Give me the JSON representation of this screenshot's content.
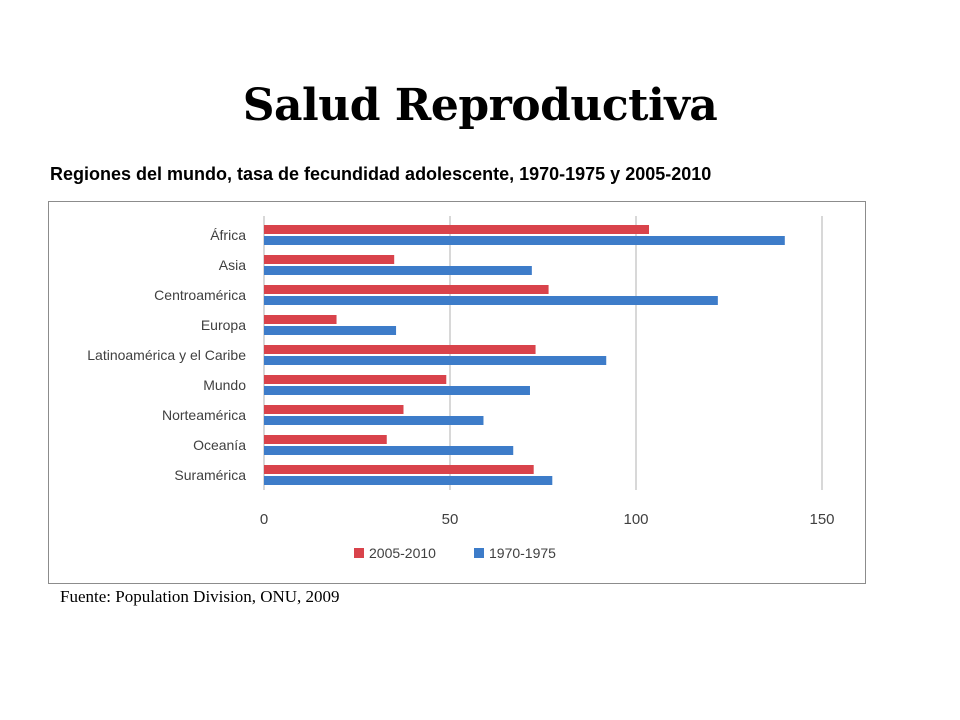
{
  "header": {
    "title": "Salud Reproductiva",
    "subtitle": "Regiones del mundo, tasa de fecundidad adolescente, 1970-1975 y 2005-2010"
  },
  "footer": {
    "source": "Fuente: Population Division, ONU, 2009"
  },
  "chart_data": {
    "type": "bar",
    "orientation": "horizontal",
    "categories": [
      "África",
      "Asia",
      "Centroamérica",
      "Europa",
      "Latinoamérica y el Caribe",
      "Mundo",
      "Norteamérica",
      "Oceanía",
      "Suramérica"
    ],
    "series": [
      {
        "name": "2005-2010",
        "color": "#d9434b",
        "values": [
          103.5,
          35,
          76.5,
          19.5,
          73,
          49,
          37.5,
          33,
          72.5
        ]
      },
      {
        "name": "1970-1975",
        "color": "#3d7cc9",
        "values": [
          140,
          72,
          122,
          35.5,
          92,
          71.5,
          59,
          67,
          77.5
        ]
      }
    ],
    "xlim": [
      0,
      150
    ],
    "xticks": [
      0,
      50,
      100,
      150
    ],
    "grid": true,
    "legend_position": "bottom"
  }
}
